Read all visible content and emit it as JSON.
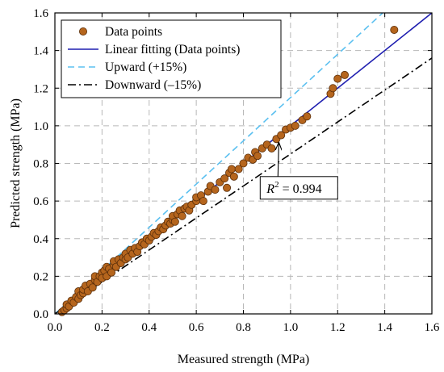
{
  "chart_data": {
    "type": "scatter",
    "xlabel": "Measured strength (MPa)",
    "ylabel": "Predicted strength (MPa)",
    "xlim": [
      0,
      1.6
    ],
    "ylim": [
      0,
      1.6
    ],
    "xticks": [
      "0.0",
      "0.2",
      "0.4",
      "0.6",
      "0.8",
      "1.0",
      "1.2",
      "1.4",
      "1.6"
    ],
    "yticks": [
      "0.0",
      "0.2",
      "0.4",
      "0.6",
      "0.8",
      "1.0",
      "1.2",
      "1.4",
      "1.6"
    ],
    "grid": true,
    "legend_position": "top-left",
    "annotation": {
      "r2_label": "R",
      "r2_sup": "2",
      "r2_value": " = 0.994",
      "arrow_target": [
        0.94,
        0.93
      ],
      "box_anchor": [
        1.07,
        0.67
      ]
    },
    "series": [
      {
        "name": "Data points",
        "kind": "scatter",
        "color": "#B5651D",
        "edge_color": "#5a2e0a",
        "points": [
          [
            0.03,
            0.01
          ],
          [
            0.04,
            0.02
          ],
          [
            0.05,
            0.03
          ],
          [
            0.05,
            0.05
          ],
          [
            0.06,
            0.04
          ],
          [
            0.07,
            0.07
          ],
          [
            0.08,
            0.06
          ],
          [
            0.09,
            0.09
          ],
          [
            0.1,
            0.08
          ],
          [
            0.1,
            0.12
          ],
          [
            0.11,
            0.1
          ],
          [
            0.12,
            0.11
          ],
          [
            0.12,
            0.13
          ],
          [
            0.13,
            0.15
          ],
          [
            0.14,
            0.12
          ],
          [
            0.15,
            0.16
          ],
          [
            0.16,
            0.14
          ],
          [
            0.17,
            0.18
          ],
          [
            0.17,
            0.2
          ],
          [
            0.18,
            0.17
          ],
          [
            0.19,
            0.2
          ],
          [
            0.2,
            0.22
          ],
          [
            0.2,
            0.19
          ],
          [
            0.21,
            0.23
          ],
          [
            0.22,
            0.2
          ],
          [
            0.22,
            0.25
          ],
          [
            0.23,
            0.24
          ],
          [
            0.24,
            0.22
          ],
          [
            0.25,
            0.26
          ],
          [
            0.25,
            0.28
          ],
          [
            0.26,
            0.25
          ],
          [
            0.27,
            0.29
          ],
          [
            0.28,
            0.27
          ],
          [
            0.29,
            0.3
          ],
          [
            0.3,
            0.29
          ],
          [
            0.3,
            0.32
          ],
          [
            0.31,
            0.3
          ],
          [
            0.32,
            0.34
          ],
          [
            0.33,
            0.32
          ],
          [
            0.34,
            0.35
          ],
          [
            0.35,
            0.33
          ],
          [
            0.36,
            0.36
          ],
          [
            0.37,
            0.38
          ],
          [
            0.38,
            0.37
          ],
          [
            0.39,
            0.4
          ],
          [
            0.4,
            0.39
          ],
          [
            0.41,
            0.41
          ],
          [
            0.42,
            0.43
          ],
          [
            0.43,
            0.42
          ],
          [
            0.44,
            0.44
          ],
          [
            0.45,
            0.46
          ],
          [
            0.46,
            0.45
          ],
          [
            0.47,
            0.47
          ],
          [
            0.48,
            0.49
          ],
          [
            0.49,
            0.48
          ],
          [
            0.5,
            0.5
          ],
          [
            0.5,
            0.52
          ],
          [
            0.51,
            0.49
          ],
          [
            0.52,
            0.53
          ],
          [
            0.53,
            0.55
          ],
          [
            0.54,
            0.52
          ],
          [
            0.55,
            0.56
          ],
          [
            0.56,
            0.57
          ],
          [
            0.57,
            0.55
          ],
          [
            0.58,
            0.58
          ],
          [
            0.6,
            0.6
          ],
          [
            0.6,
            0.62
          ],
          [
            0.62,
            0.63
          ],
          [
            0.63,
            0.6
          ],
          [
            0.65,
            0.65
          ],
          [
            0.66,
            0.68
          ],
          [
            0.68,
            0.66
          ],
          [
            0.7,
            0.7
          ],
          [
            0.72,
            0.72
          ],
          [
            0.73,
            0.67
          ],
          [
            0.74,
            0.75
          ],
          [
            0.75,
            0.77
          ],
          [
            0.76,
            0.73
          ],
          [
            0.78,
            0.77
          ],
          [
            0.8,
            0.8
          ],
          [
            0.82,
            0.83
          ],
          [
            0.84,
            0.82
          ],
          [
            0.85,
            0.86
          ],
          [
            0.86,
            0.84
          ],
          [
            0.88,
            0.88
          ],
          [
            0.9,
            0.9
          ],
          [
            0.92,
            0.88
          ],
          [
            0.94,
            0.93
          ],
          [
            0.96,
            0.95
          ],
          [
            0.98,
            0.98
          ],
          [
            1.0,
            0.99
          ],
          [
            1.02,
            1.0
          ],
          [
            1.05,
            1.03
          ],
          [
            1.07,
            1.05
          ],
          [
            1.17,
            1.17
          ],
          [
            1.18,
            1.2
          ],
          [
            1.2,
            1.25
          ],
          [
            1.23,
            1.27
          ],
          [
            1.44,
            1.51
          ]
        ]
      },
      {
        "name": "Linear fitting (Data points)",
        "kind": "line",
        "color": "#1f1fb0",
        "dash": "solid",
        "slope": 1.0
      },
      {
        "name": "Upward (+15%)",
        "kind": "line",
        "color": "#5bc0f0",
        "dash": "dashed",
        "slope": 1.15
      },
      {
        "name": "Downward (–15%)",
        "kind": "line",
        "color": "#000000",
        "dash": "dashdot",
        "slope": 0.85
      }
    ]
  }
}
